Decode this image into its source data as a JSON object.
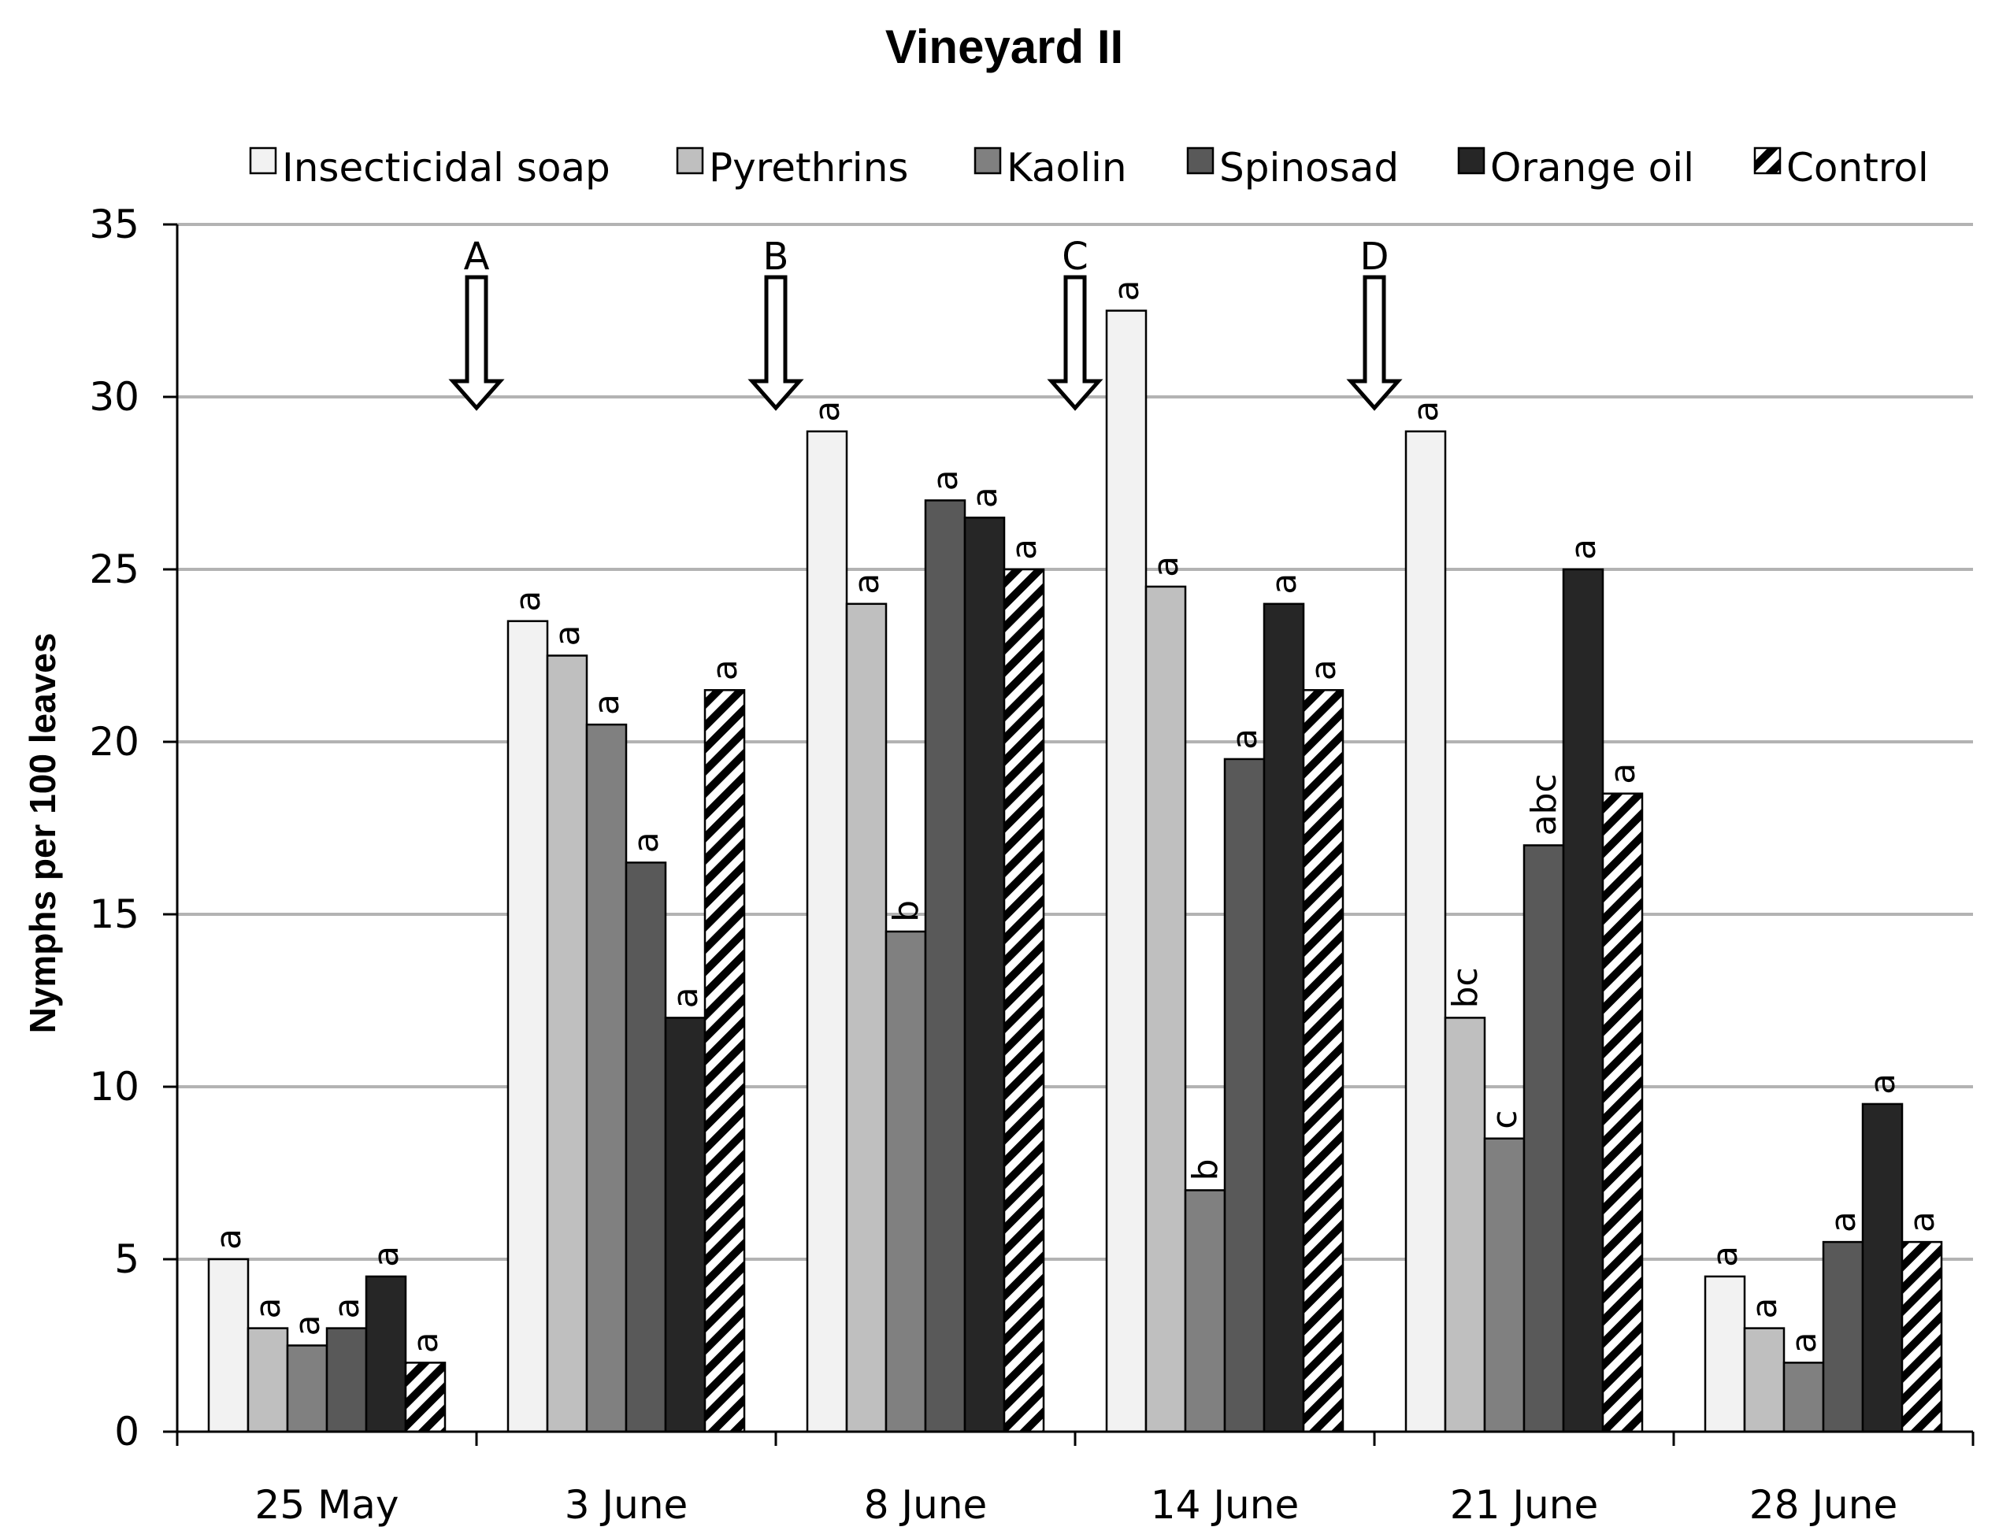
{
  "chart_data": {
    "type": "bar",
    "title": "Vineyard II",
    "xlabel": "",
    "ylabel": "Nymphs per 100 leaves",
    "ylim": [
      0,
      35
    ],
    "yticks": [
      0,
      5,
      10,
      15,
      20,
      25,
      30,
      35
    ],
    "grid": true,
    "legend_position": "top",
    "categories": [
      "25 May",
      "3 June",
      "8 June",
      "14 June",
      "21 June",
      "28 June"
    ],
    "series": [
      {
        "name": "Insecticidal soap",
        "color": "#f2f2f2",
        "pattern": "none",
        "values": [
          5,
          23.5,
          29,
          32.5,
          29,
          4.5
        ],
        "labels": [
          "a",
          "a",
          "a",
          "a",
          "a",
          "a"
        ]
      },
      {
        "name": "Pyrethrins",
        "color": "#bfbfbf",
        "pattern": "none",
        "values": [
          3,
          22.5,
          24,
          24.5,
          12,
          3
        ],
        "labels": [
          "a",
          "a",
          "a",
          "a",
          "bc",
          "a"
        ]
      },
      {
        "name": "Kaolin",
        "color": "#808080",
        "pattern": "none",
        "values": [
          2.5,
          20.5,
          14.5,
          7,
          8.5,
          2
        ],
        "labels": [
          "a",
          "a",
          "b",
          "b",
          "c",
          "a"
        ]
      },
      {
        "name": "Spinosad",
        "color": "#595959",
        "pattern": "none",
        "values": [
          3,
          16.5,
          27,
          19.5,
          17,
          5.5
        ],
        "labels": [
          "a",
          "a",
          "a",
          "a",
          "abc",
          "a"
        ]
      },
      {
        "name": "Orange oil",
        "color": "#262626",
        "pattern": "none",
        "values": [
          4.5,
          12,
          26.5,
          24,
          25,
          9.5
        ],
        "labels": [
          "a",
          "a",
          "a",
          "a",
          "a",
          "a"
        ]
      },
      {
        "name": "Control",
        "color": "#000000",
        "pattern": "diagonal-stripes",
        "values": [
          2,
          21.5,
          25,
          21.5,
          18.5,
          5.5
        ],
        "labels": [
          "a",
          "a",
          "a",
          "a",
          "a",
          "a"
        ]
      }
    ],
    "annotations": [
      {
        "label": "A",
        "between": [
          "25 May",
          "3 June"
        ],
        "y": 30
      },
      {
        "label": "B",
        "between": [
          "3 June",
          "8 June"
        ],
        "y": 30
      },
      {
        "label": "C",
        "between": [
          "8 June",
          "14 June"
        ],
        "y": 30
      },
      {
        "label": "D",
        "between": [
          "14 June",
          "21 June"
        ],
        "y": 30
      }
    ]
  }
}
